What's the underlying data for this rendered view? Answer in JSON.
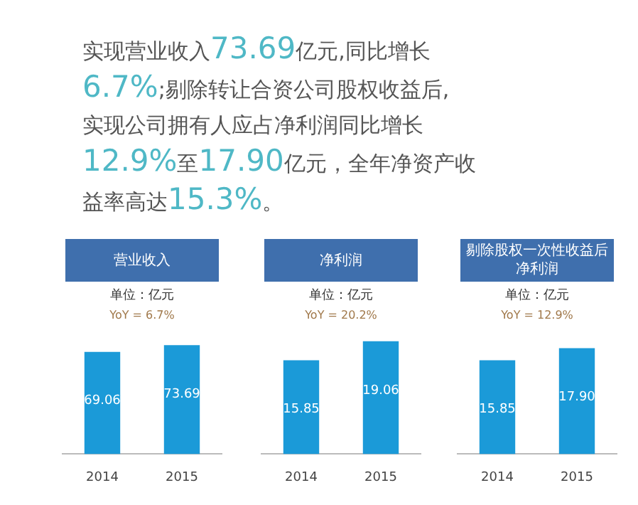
{
  "chart_data": [
    {
      "type": "other",
      "annotations": [
        "实现营业收入73.69亿元,同比增长",
        "6.7%;剔除转让合资公司股权收益后,",
        "实现公司拥有人应占净利润同比增长",
        "12.9%至17.90亿元，全年净资产收",
        "益率高达15.3%。"
      ]
    },
    {
      "type": "bar",
      "title": "营业收入",
      "subtitle": "单位：亿元",
      "categories": [
        "2014",
        "2015"
      ],
      "values": [
        69.06,
        73.69
      ],
      "value_labels": [
        "69.06",
        "73.69"
      ],
      "color": "#1b9ad8",
      "tick_labels": "x",
      "annotations": [
        "YoY = 6.7%"
      ]
    },
    {
      "type": "bar",
      "title": "净利润",
      "subtitle": "单位：亿元",
      "categories": [
        "2014",
        "2015"
      ],
      "values": [
        15.85,
        19.06
      ],
      "value_labels": [
        "15.85",
        "19.06"
      ],
      "color": "#1b9ad8",
      "tick_labels": "x",
      "annotations": [
        "YoY = 20.2%"
      ]
    },
    {
      "type": "bar",
      "title": "剔除股权一次性收益后净利润",
      "subtitle": "单位：亿元",
      "categories": [
        "2014",
        "2015"
      ],
      "values": [
        15.85,
        17.9
      ],
      "value_labels": [
        "15.85",
        "17.90"
      ],
      "color": "#1b9ad8",
      "tick_labels": "x",
      "annotations": [
        "YoY = 12.9%"
      ]
    }
  ]
}
